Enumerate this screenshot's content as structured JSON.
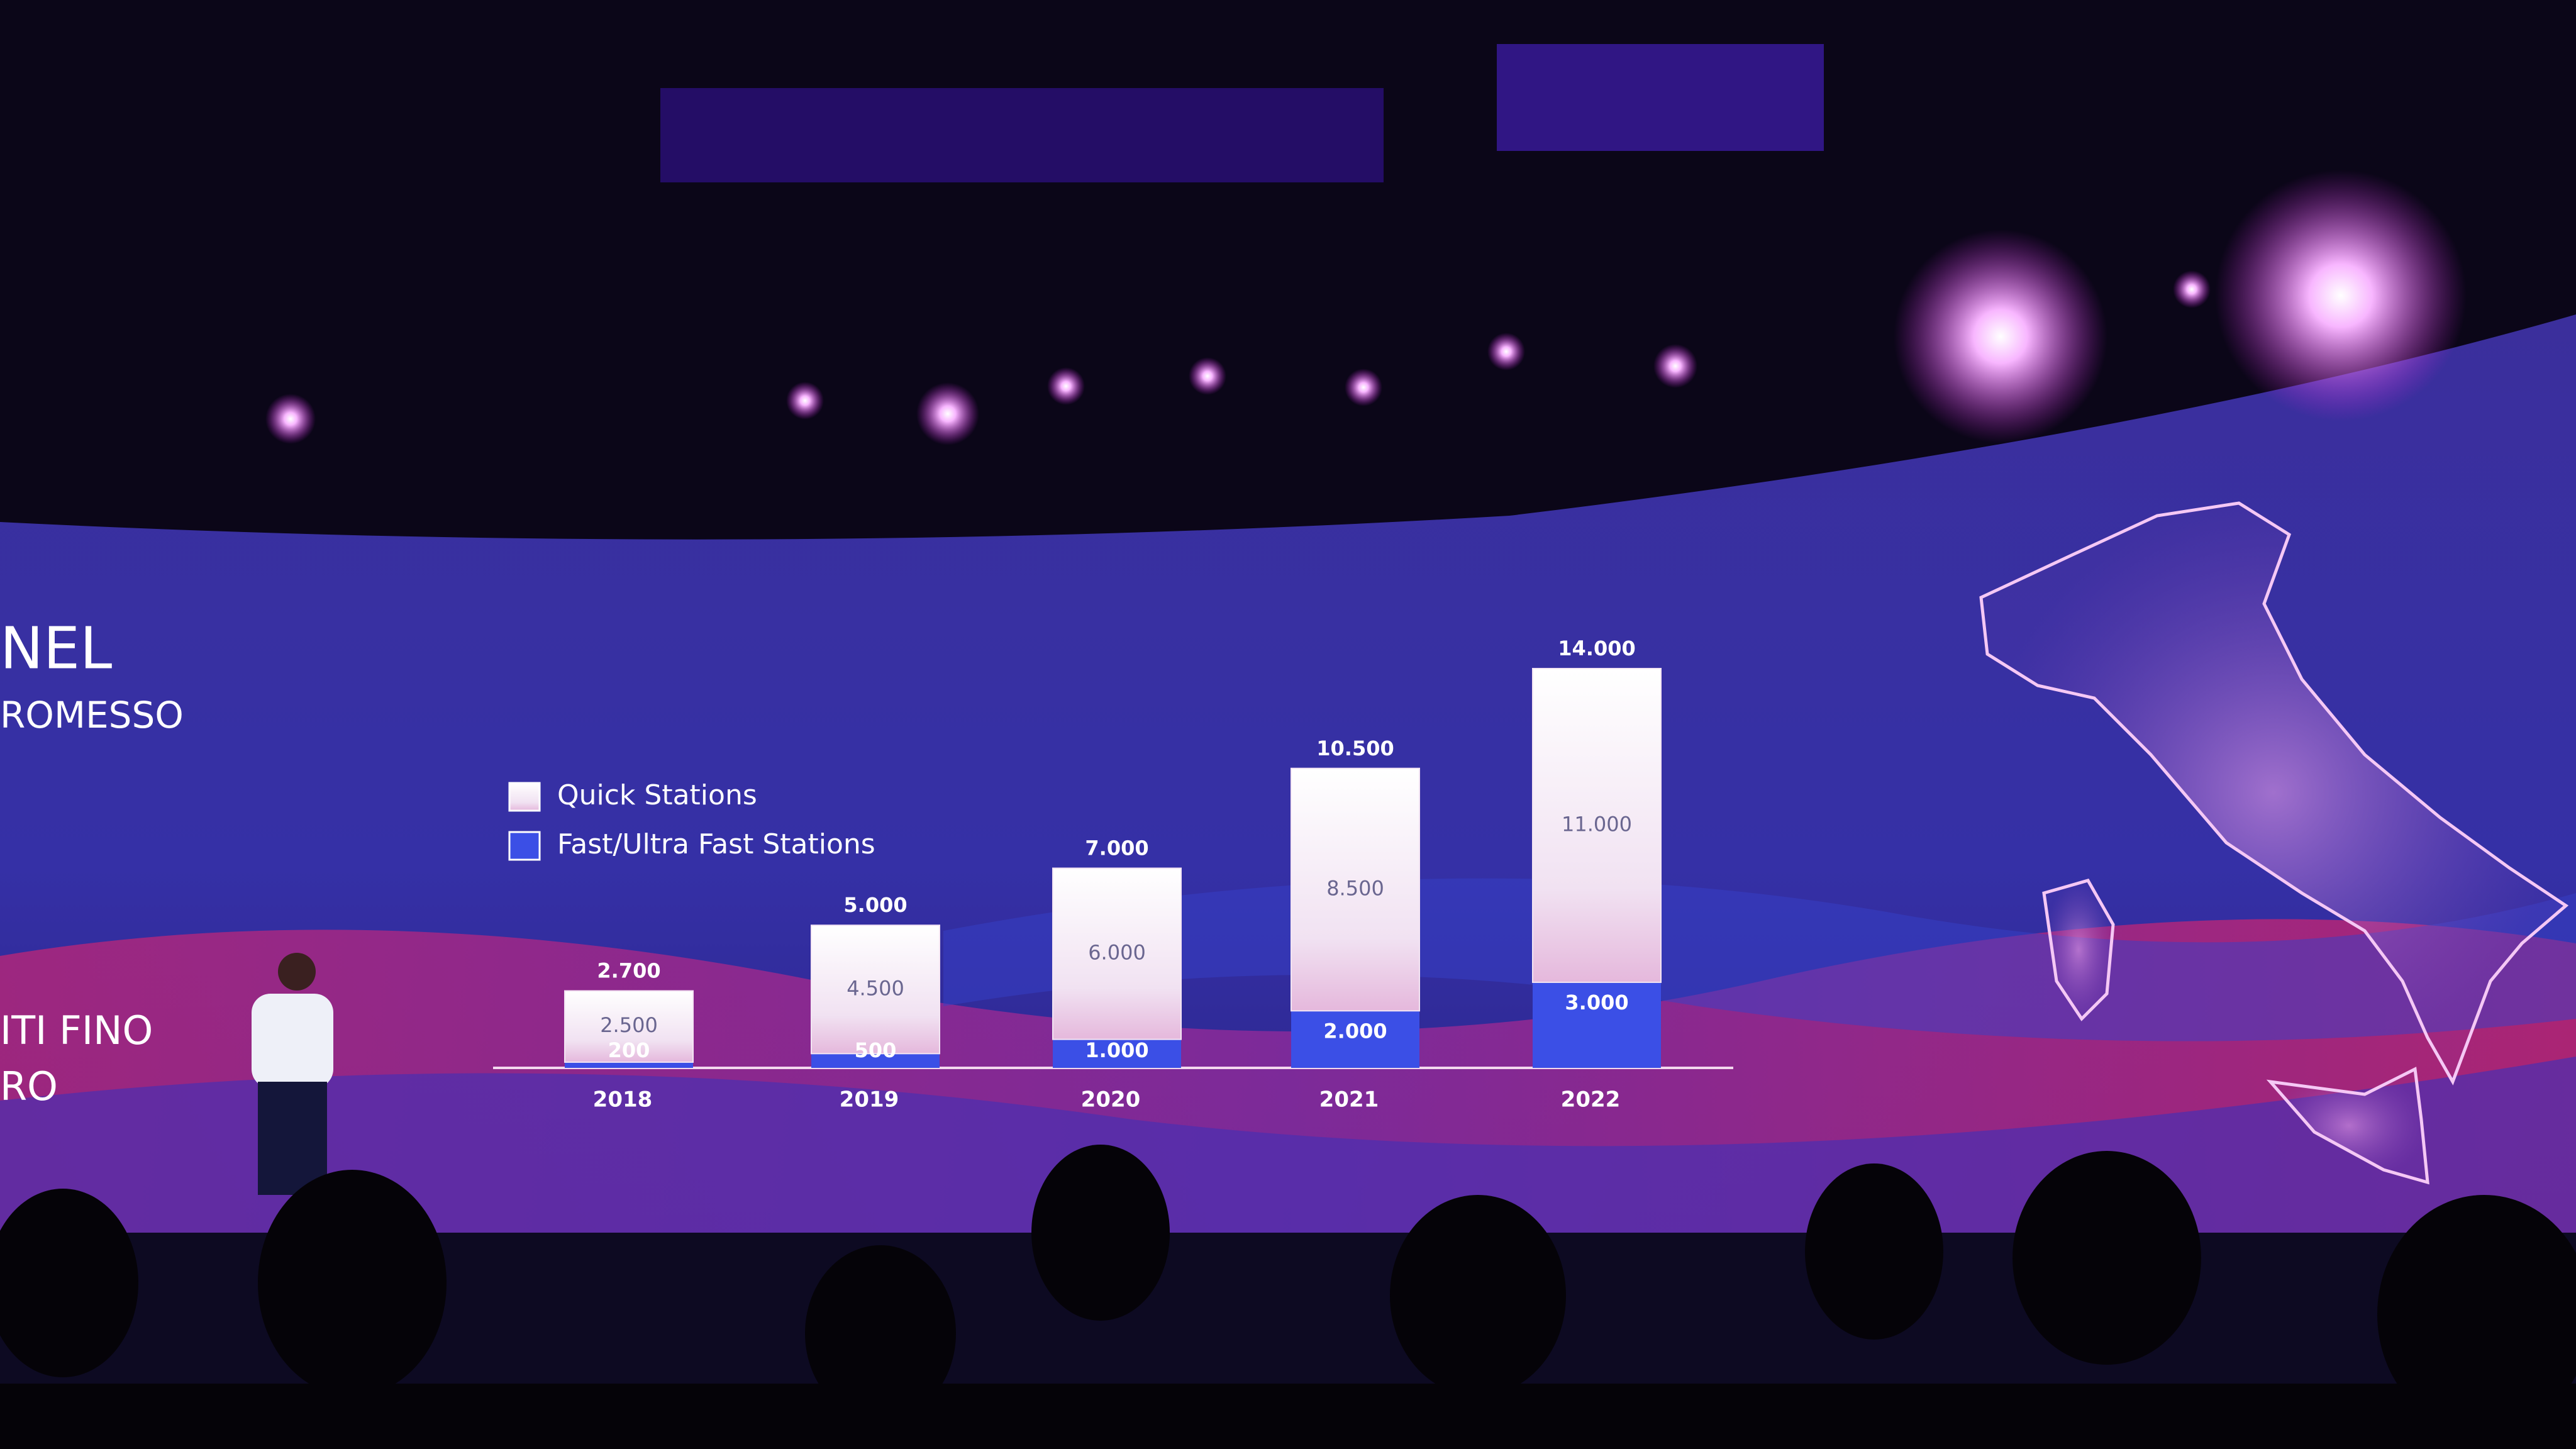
{
  "chart_data": {
    "type": "stacked-bar",
    "categories": [
      "2018",
      "2019",
      "2020",
      "2021",
      "2022"
    ],
    "series": [
      {
        "name": "Quick Stations",
        "color": "#f3e4f3",
        "values": [
          2500,
          4500,
          6000,
          8500,
          11000
        ],
        "value_labels": [
          "2.500",
          "4.500",
          "6.000",
          "8.500",
          "11.000"
        ]
      },
      {
        "name": "Fast/Ultra Fast Stations",
        "color": "#3b4fe6",
        "values": [
          200,
          500,
          1000,
          2000,
          3000
        ],
        "value_labels": [
          "200",
          "500",
          "1.000",
          "2.000",
          "3.000"
        ]
      }
    ],
    "totals": {
      "values": [
        2700,
        5000,
        7000,
        10500,
        14000
      ],
      "value_labels": [
        "2.700",
        "5.000",
        "7.000",
        "10.500",
        "14.000"
      ]
    }
  },
  "slide_text": [
    "NEL",
    "ROMESSO",
    "ITI FINO",
    "RO"
  ]
}
